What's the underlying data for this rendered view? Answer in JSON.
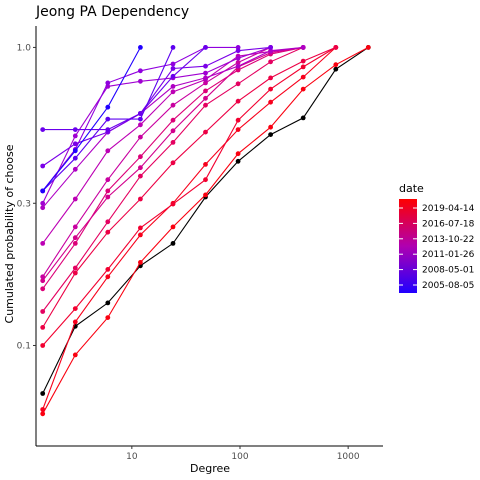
{
  "chart_data": {
    "type": "line",
    "title": "Jeong PA Dependency",
    "xlabel": "Degree",
    "ylabel": "Cumulated probability of choose",
    "x_scale": "log",
    "y_scale": "log",
    "xlim": [
      1.3,
      2100
    ],
    "ylim": [
      0.046,
      1.18
    ],
    "x_ticks": [
      {
        "value": 10,
        "label": "10"
      },
      {
        "value": 100,
        "label": "100"
      },
      {
        "value": 1000,
        "label": "1000"
      }
    ],
    "y_ticks": [
      {
        "value": 0.1,
        "label": "0.1"
      },
      {
        "value": 0.3,
        "label": "0.3"
      },
      {
        "value": 1.0,
        "label": "1.0"
      }
    ],
    "grid": false,
    "legend": {
      "title": "date",
      "placement": "right",
      "gradient_colors": [
        "#fe0000",
        "#2000ff"
      ],
      "entries": [
        "2019-04-14",
        "2016-07-18",
        "2013-10-22",
        "2011-01-26",
        "2008-05-01",
        "2005-08-05"
      ]
    },
    "series": [
      {
        "color": "#000000",
        "points": [
          [
            1.5,
            0.069
          ],
          [
            3,
            0.116
          ],
          [
            6,
            0.139
          ],
          [
            12,
            0.185
          ],
          [
            24,
            0.22
          ],
          [
            48,
            0.315
          ],
          [
            96,
            0.415
          ],
          [
            192,
            0.51
          ],
          [
            384,
            0.58
          ],
          [
            768,
            0.845
          ],
          [
            1536,
            1.0
          ]
        ]
      },
      {
        "color": "#fa0010",
        "points": [
          [
            1.5,
            0.059
          ],
          [
            3,
            0.093
          ],
          [
            6,
            0.124
          ],
          [
            12,
            0.19
          ],
          [
            24,
            0.25
          ],
          [
            48,
            0.32
          ],
          [
            96,
            0.44
          ],
          [
            192,
            0.54
          ],
          [
            384,
            0.725
          ],
          [
            768,
            0.875
          ],
          [
            1536,
            1.0
          ]
        ]
      },
      {
        "color": "#f7001c",
        "points": [
          [
            1.5,
            0.061
          ],
          [
            3,
            0.12
          ],
          [
            6,
            0.17
          ],
          [
            12,
            0.235
          ],
          [
            24,
            0.3
          ],
          [
            48,
            0.405
          ],
          [
            96,
            0.53
          ],
          [
            192,
            0.655
          ],
          [
            384,
            0.795
          ],
          [
            768,
            1.0
          ]
        ]
      },
      {
        "color": "#f20030",
        "points": [
          [
            1.5,
            0.1
          ],
          [
            3,
            0.133
          ],
          [
            6,
            0.18
          ],
          [
            12,
            0.248
          ],
          [
            24,
            0.298
          ],
          [
            48,
            0.36
          ],
          [
            96,
            0.57
          ],
          [
            192,
            0.725
          ],
          [
            384,
            0.86
          ],
          [
            768,
            1.0
          ]
        ]
      },
      {
        "color": "#ec0045",
        "points": [
          [
            1.5,
            0.115
          ],
          [
            3,
            0.175
          ],
          [
            6,
            0.24
          ],
          [
            12,
            0.31
          ],
          [
            24,
            0.41
          ],
          [
            48,
            0.52
          ],
          [
            96,
            0.66
          ],
          [
            192,
            0.79
          ],
          [
            384,
            0.9
          ],
          [
            768,
            1.0
          ]
        ]
      },
      {
        "color": "#e40060",
        "points": [
          [
            1.5,
            0.13
          ],
          [
            3,
            0.182
          ],
          [
            6,
            0.26
          ],
          [
            12,
            0.37
          ],
          [
            24,
            0.48
          ],
          [
            48,
            0.64
          ],
          [
            96,
            0.755
          ],
          [
            192,
            0.895
          ],
          [
            384,
            1.0
          ]
        ]
      },
      {
        "color": "#dc0078",
        "points": [
          [
            1.5,
            0.155
          ],
          [
            3,
            0.22
          ],
          [
            6,
            0.33
          ],
          [
            12,
            0.43
          ],
          [
            24,
            0.57
          ],
          [
            48,
            0.715
          ],
          [
            96,
            0.84
          ],
          [
            192,
            0.95
          ],
          [
            384,
            1.0
          ]
        ]
      },
      {
        "color": "#d2008c",
        "points": [
          [
            1.5,
            0.165
          ],
          [
            3,
            0.23
          ],
          [
            6,
            0.315
          ],
          [
            12,
            0.395
          ],
          [
            24,
            0.525
          ],
          [
            48,
            0.675
          ],
          [
            96,
            0.86
          ],
          [
            192,
            0.96
          ],
          [
            384,
            1.0
          ]
        ]
      },
      {
        "color": "#c800a0",
        "points": [
          [
            1.5,
            0.17
          ],
          [
            3,
            0.25
          ],
          [
            6,
            0.36
          ],
          [
            12,
            0.5
          ],
          [
            24,
            0.64
          ],
          [
            48,
            0.76
          ],
          [
            96,
            0.89
          ],
          [
            192,
            1.0
          ]
        ]
      },
      {
        "color": "#bc00b4",
        "points": [
          [
            1.5,
            0.22
          ],
          [
            3,
            0.31
          ],
          [
            6,
            0.45
          ],
          [
            12,
            0.55
          ],
          [
            24,
            0.71
          ],
          [
            48,
            0.78
          ],
          [
            96,
            0.935
          ],
          [
            192,
            0.97
          ],
          [
            384,
            1.0
          ]
        ]
      },
      {
        "color": "#ae00c4",
        "points": [
          [
            1.5,
            0.29
          ],
          [
            3,
            0.39
          ],
          [
            6,
            0.52
          ],
          [
            12,
            0.6
          ],
          [
            24,
            0.74
          ],
          [
            48,
            0.79
          ],
          [
            96,
            0.865
          ],
          [
            192,
            0.975
          ],
          [
            384,
            1.0
          ]
        ]
      },
      {
        "color": "#a000d2",
        "points": [
          [
            1.5,
            0.3
          ],
          [
            3,
            0.505
          ],
          [
            6,
            0.74
          ],
          [
            12,
            0.77
          ],
          [
            24,
            0.79
          ],
          [
            48,
            0.82
          ],
          [
            96,
            0.92
          ],
          [
            192,
            1.0
          ]
        ]
      },
      {
        "color": "#9000de",
        "points": [
          [
            1.5,
            0.33
          ],
          [
            3,
            0.455
          ],
          [
            6,
            0.76
          ],
          [
            12,
            0.835
          ],
          [
            24,
            0.88
          ],
          [
            48,
            1.0
          ],
          [
            96,
            1.0
          ]
        ]
      },
      {
        "color": "#7a00e8",
        "points": [
          [
            1.5,
            0.4
          ],
          [
            3,
            0.475
          ],
          [
            6,
            0.52
          ],
          [
            12,
            0.6
          ],
          [
            24,
            0.85
          ],
          [
            48,
            0.865
          ],
          [
            96,
            0.975
          ],
          [
            192,
            1.0
          ]
        ]
      },
      {
        "color": "#5c00f0",
        "points": [
          [
            1.5,
            0.33
          ],
          [
            3,
            0.425
          ],
          [
            6,
            0.575
          ],
          [
            12,
            0.575
          ],
          [
            24,
            1.0
          ]
        ]
      },
      {
        "color": "#6a00ec",
        "points": [
          [
            1.5,
            0.53
          ],
          [
            3,
            0.53
          ],
          [
            6,
            0.53
          ],
          [
            12,
            0.6
          ],
          [
            24,
            0.8
          ],
          [
            48,
            1.0
          ]
        ]
      },
      {
        "color": "#2000ff",
        "points": [
          [
            1.5,
            0.33
          ],
          [
            3,
            0.45
          ],
          [
            6,
            0.63
          ],
          [
            12,
            1.0
          ]
        ]
      }
    ]
  }
}
